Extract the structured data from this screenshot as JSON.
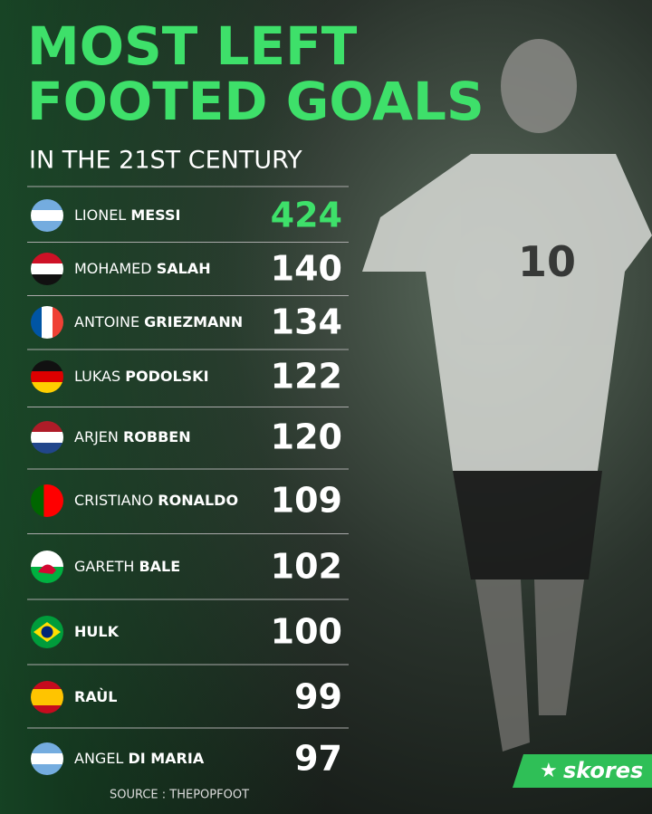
{
  "header": {
    "title_lines": [
      "MOST LEFT",
      "FOOTED GOALS"
    ],
    "subtitle": "IN THE 21ST CENTURY"
  },
  "table": {
    "rows": [
      {
        "first": "LIONEL",
        "last": "MESSI",
        "goals": 424
      },
      {
        "first": "MOHAMED",
        "last": "SALAH",
        "goals": 140
      },
      {
        "first": "ANTOINE",
        "last": "GRIEZMANN",
        "goals": 134
      },
      {
        "first": "LUKAS",
        "last": "PODOLSKI",
        "goals": 122
      },
      {
        "first": "ARJEN",
        "last": "ROBBEN",
        "goals": 120
      },
      {
        "first": "CRISTIANO",
        "last": "RONALDO",
        "goals": 109
      },
      {
        "first": "GARETH",
        "last": "BALE",
        "goals": 102
      },
      {
        "last": "HULK",
        "goals": 100
      },
      {
        "last": "RAÙL",
        "goals": 99
      },
      {
        "first": "ANGEL",
        "last": "DI MARIA",
        "goals": 97
      }
    ]
  },
  "footer": {
    "source": "SOURCE : THEPOPFOOT",
    "brand": "skores"
  }
}
